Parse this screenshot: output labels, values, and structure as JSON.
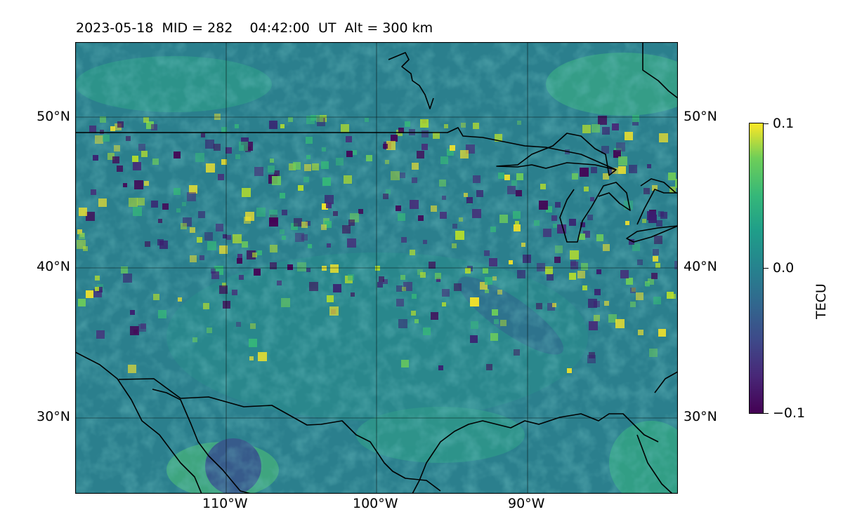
{
  "title": "2023-05-18  MID = 282    04:42:00  UT  Alt = 300 km",
  "map": {
    "lat_labels": [
      "50°N",
      "40°N",
      "30°N"
    ],
    "lon_labels": [
      "110°W",
      "100°W",
      "90°W"
    ],
    "lat_range": [
      25,
      55
    ],
    "lon_range": [
      -120,
      -80
    ],
    "gridlines": true,
    "colormap": "viridis",
    "colors": {
      "background_field": "#2a8a8c",
      "coastline": "#000000",
      "high": "#fde725",
      "low": "#440154"
    }
  },
  "colorbar": {
    "label": "TECU",
    "tick_labels": [
      "0.1",
      "0.0",
      "−0.1"
    ],
    "vmin": -0.1,
    "vmax": 0.1
  }
}
